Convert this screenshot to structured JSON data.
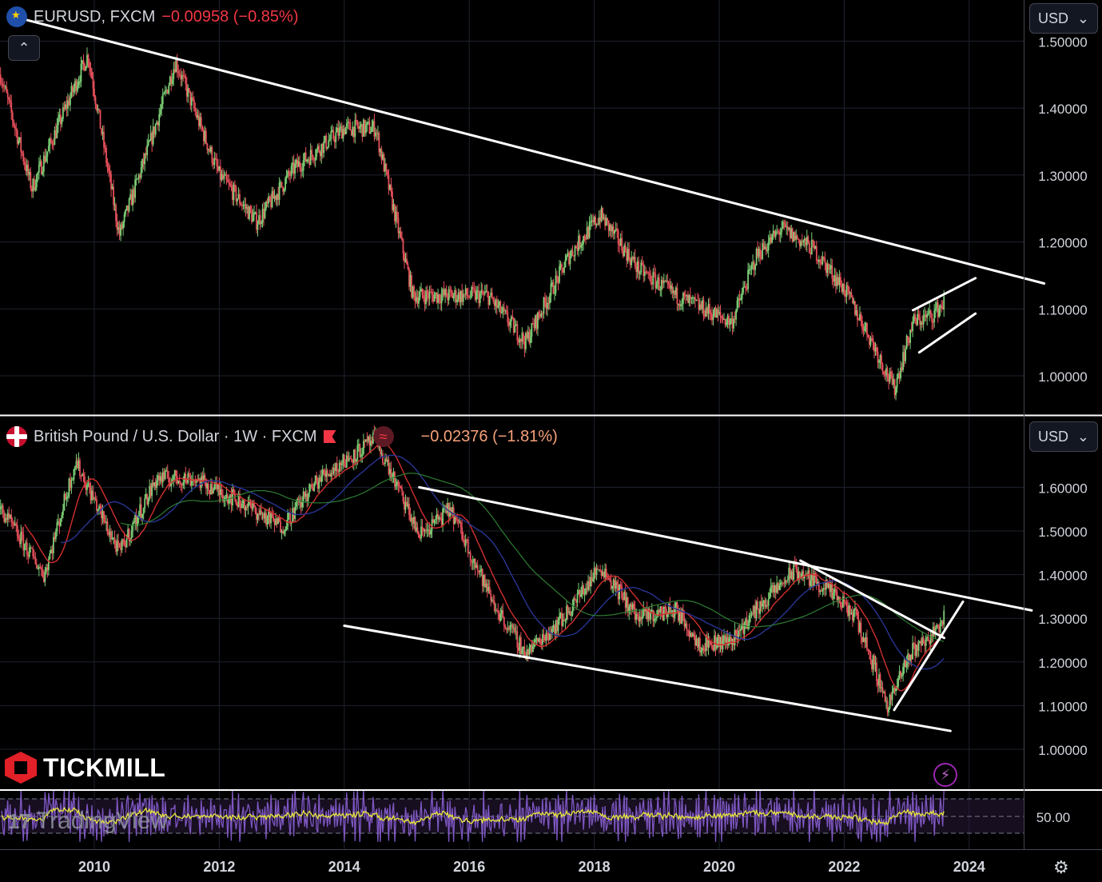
{
  "pane1": {
    "symbol": "EURUSD, FXCM",
    "change": "−0.00958 (−0.85%)",
    "flag_icon": "eu-us-flag-icon",
    "currency": "USD",
    "collapse_icon": "chevron-up-icon",
    "price_labels": [
      "1.50000",
      "1.40000",
      "1.30000",
      "1.20000",
      "1.10000",
      "1.00000"
    ]
  },
  "pane2": {
    "symbol": "British Pound / U.S. Dollar · 1W · FXCM",
    "change": "−0.02376 (−1.81%)",
    "flag_icon": "gb-us-flag-icon",
    "currency": "USD",
    "price_labels": [
      "1.60000",
      "1.50000",
      "1.40000",
      "1.30000",
      "1.20000",
      "1.10000",
      "1.00000"
    ]
  },
  "pane3": {
    "price_labels": [
      "50.00"
    ]
  },
  "branding": {
    "broker": "TICKMILL",
    "platform": "TradingView"
  },
  "time_axis": [
    "2010",
    "2012",
    "2014",
    "2016",
    "2018",
    "2020",
    "2022",
    "2024"
  ],
  "colors": {
    "up": "#7dd076",
    "down": "#e8505b",
    "trendline": "#ffffff",
    "ma_red": "#d32f2f",
    "ma_blue": "#283593",
    "ma_green": "#2e7d32",
    "rsi": "#7e57c2",
    "rsi_ma": "#e8e83a"
  },
  "chart_data": [
    {
      "type": "candlestick",
      "series": [
        {
          "name": "EURUSD, FXCM",
          "x": [
            2008.5,
            2009.0,
            2009.9,
            2010.4,
            2010.9,
            2011.3,
            2012.0,
            2012.6,
            2013.2,
            2014.0,
            2014.5,
            2015.1,
            2015.6,
            2016.3,
            2016.9,
            2017.6,
            2018.1,
            2018.7,
            2019.3,
            2020.2,
            2020.6,
            2021.0,
            2021.5,
            2022.0,
            2022.4,
            2022.8,
            2023.1,
            2023.4,
            2023.6
          ],
          "close": [
            1.45,
            1.28,
            1.48,
            1.21,
            1.35,
            1.47,
            1.3,
            1.23,
            1.31,
            1.37,
            1.37,
            1.12,
            1.12,
            1.12,
            1.05,
            1.18,
            1.24,
            1.16,
            1.12,
            1.08,
            1.18,
            1.22,
            1.19,
            1.13,
            1.06,
            0.98,
            1.08,
            1.09,
            1.11
          ]
        }
      ],
      "ylim": [
        0.95,
        1.55
      ]
    },
    {
      "type": "candlestick",
      "series": [
        {
          "name": "British Pound / U.S. Dollar · 1W · FXCM",
          "x": [
            2008.5,
            2009.2,
            2009.7,
            2010.4,
            2011.0,
            2011.6,
            2012.3,
            2013.0,
            2013.6,
            2014.5,
            2015.2,
            2015.7,
            2016.4,
            2016.9,
            2017.5,
            2018.1,
            2018.7,
            2019.3,
            2019.7,
            2020.2,
            2020.6,
            2021.2,
            2021.7,
            2022.2,
            2022.7,
            2023.1,
            2023.4,
            2023.6
          ],
          "close": [
            1.55,
            1.4,
            1.66,
            1.45,
            1.62,
            1.62,
            1.57,
            1.51,
            1.62,
            1.71,
            1.49,
            1.55,
            1.33,
            1.22,
            1.3,
            1.42,
            1.3,
            1.32,
            1.24,
            1.25,
            1.32,
            1.41,
            1.37,
            1.3,
            1.1,
            1.23,
            1.26,
            1.3
          ]
        }
      ],
      "ylim": [
        0.95,
        1.7
      ]
    },
    {
      "type": "line",
      "series": [
        {
          "name": "RSI"
        }
      ],
      "ylim": [
        0,
        100
      ]
    }
  ]
}
